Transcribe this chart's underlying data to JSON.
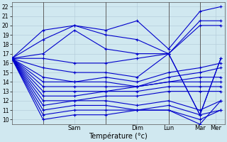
{
  "xlabel": "Température (°c)",
  "background_color": "#d0e8f0",
  "grid_color": "#b0c8d8",
  "line_color": "#0000cc",
  "vline_color": "#606060",
  "ylim": [
    9.5,
    22.5
  ],
  "yticks": [
    10,
    11,
    12,
    13,
    14,
    15,
    16,
    17,
    18,
    19,
    20,
    21,
    22
  ],
  "xlim": [
    0,
    10
  ],
  "vlines": [
    1.5,
    4.5,
    7.5,
    9.0
  ],
  "xtick_positions": [
    3.0,
    6.0,
    8.25,
    9.5
  ],
  "xtick_labels": [
    "Sam",
    "Dim",
    "Lun",
    "Mar",
    "Mer"
  ],
  "xtick_pos2": [
    0.75,
    3.0,
    6.0,
    8.25,
    9.75
  ],
  "series": [
    [
      0,
      16.5,
      1.5,
      19.5,
      3.0,
      20.0,
      4.5,
      19.5,
      6.0,
      20.5,
      7.5,
      17.5,
      9.0,
      21.5,
      10.0,
      22.0
    ],
    [
      0,
      16.5,
      1.5,
      18.5,
      3.0,
      20.0,
      4.5,
      19.0,
      6.0,
      18.5,
      7.5,
      17.0,
      9.0,
      20.5,
      10.0,
      20.5
    ],
    [
      0,
      16.5,
      1.5,
      17.0,
      3.0,
      19.5,
      4.5,
      17.5,
      6.0,
      17.0,
      7.5,
      17.0,
      9.0,
      20.0,
      10.0,
      20.0
    ],
    [
      0,
      16.5,
      1.5,
      16.5,
      3.0,
      16.0,
      4.5,
      16.0,
      6.0,
      16.5,
      7.5,
      17.0,
      9.0,
      10.5,
      10.0,
      16.5
    ],
    [
      0,
      16.5,
      1.5,
      15.5,
      3.0,
      15.0,
      4.5,
      15.0,
      6.0,
      14.5,
      7.5,
      17.0,
      9.0,
      10.5,
      10.0,
      16.5
    ],
    [
      0,
      16.5,
      1.5,
      14.5,
      3.0,
      14.0,
      4.5,
      14.5,
      6.0,
      14.0,
      7.5,
      15.0,
      9.0,
      15.5,
      10.0,
      16.0
    ],
    [
      0,
      16.5,
      1.5,
      14.0,
      3.0,
      14.0,
      4.5,
      14.0,
      6.0,
      13.5,
      7.5,
      14.5,
      9.0,
      15.0,
      10.0,
      15.5
    ],
    [
      0,
      16.5,
      1.5,
      13.5,
      3.0,
      13.5,
      4.5,
      13.5,
      6.0,
      13.5,
      7.5,
      14.0,
      9.0,
      14.5,
      10.0,
      14.5
    ],
    [
      0,
      16.5,
      1.5,
      13.0,
      3.0,
      13.0,
      4.5,
      13.0,
      6.0,
      13.5,
      7.5,
      14.0,
      9.0,
      14.0,
      10.0,
      14.0
    ],
    [
      0,
      16.5,
      1.5,
      12.5,
      3.0,
      12.5,
      4.5,
      13.0,
      6.0,
      13.0,
      7.5,
      13.5,
      9.0,
      13.5,
      10.0,
      13.5
    ],
    [
      0,
      16.5,
      1.5,
      12.0,
      3.0,
      12.0,
      4.5,
      12.5,
      6.0,
      12.5,
      7.5,
      13.0,
      9.0,
      13.0,
      10.0,
      13.0
    ],
    [
      0,
      16.5,
      1.5,
      11.5,
      3.0,
      12.0,
      4.5,
      12.0,
      6.0,
      11.5,
      7.5,
      12.0,
      9.0,
      11.0,
      10.0,
      12.0
    ],
    [
      0,
      16.5,
      1.5,
      11.0,
      3.0,
      11.5,
      4.5,
      11.5,
      6.0,
      11.0,
      7.5,
      11.5,
      9.0,
      10.5,
      10.0,
      11.0
    ],
    [
      0,
      16.5,
      1.5,
      10.5,
      3.0,
      11.0,
      4.5,
      11.0,
      6.0,
      11.0,
      7.5,
      11.0,
      9.0,
      10.0,
      10.0,
      11.0
    ],
    [
      0,
      16.5,
      1.5,
      10.0,
      3.0,
      10.5,
      4.5,
      10.5,
      6.0,
      11.0,
      7.5,
      11.0,
      9.0,
      9.5,
      10.0,
      12.0
    ]
  ]
}
